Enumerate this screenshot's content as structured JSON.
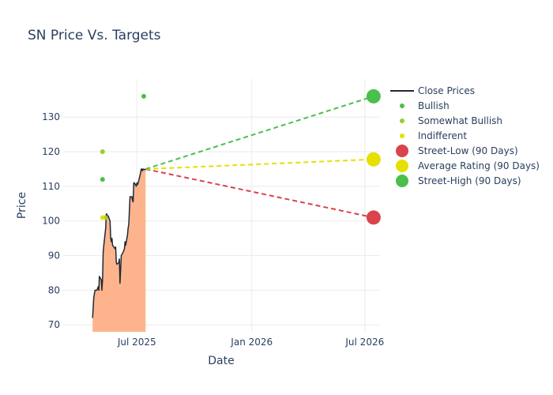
{
  "chart_data": {
    "type": "line",
    "title": "SN Price Vs. Targets",
    "xlabel": "Date",
    "ylabel": "Price",
    "x_range": [
      "2025-03-05",
      "2026-07-24"
    ],
    "ylim": [
      68,
      141
    ],
    "x_ticks": [
      {
        "date": "2025-07-01",
        "label": "Jul 2025"
      },
      {
        "date": "2026-01-01",
        "label": "Jan 2026"
      },
      {
        "date": "2026-07-01",
        "label": "Jul 2026"
      }
    ],
    "y_ticks": [
      70,
      80,
      90,
      100,
      110,
      120,
      130
    ],
    "grid": true,
    "legend_position": "right",
    "colors": {
      "close": "#1f2937",
      "fill": "#fdb48c",
      "bullish": "#4bbf4b",
      "somewhat_bullish": "#9acd32",
      "indifferent": "#e5e000",
      "street_low": "#d9434b",
      "average": "#e5e000",
      "street_high": "#4bbf4b",
      "grid": "#ebebeb",
      "text": "#2a3f5f"
    },
    "close_prices": {
      "name": "Close Prices",
      "dates": [
        "2025-04-21",
        "2025-04-23",
        "2025-04-25",
        "2025-04-28",
        "2025-04-30",
        "2025-05-01",
        "2025-05-02",
        "2025-05-05",
        "2025-05-06",
        "2025-05-07",
        "2025-05-08",
        "2025-05-09",
        "2025-05-12",
        "2025-05-13",
        "2025-05-14",
        "2025-05-15",
        "2025-05-16",
        "2025-05-19",
        "2025-05-20",
        "2025-05-21",
        "2025-05-22",
        "2025-05-23",
        "2025-05-27",
        "2025-05-28",
        "2025-05-29",
        "2025-05-30",
        "2025-06-02",
        "2025-06-03",
        "2025-06-04",
        "2025-06-05",
        "2025-06-06",
        "2025-06-09",
        "2025-06-10",
        "2025-06-11",
        "2025-06-12",
        "2025-06-13",
        "2025-06-16",
        "2025-06-17",
        "2025-06-18",
        "2025-06-20",
        "2025-06-23",
        "2025-06-24",
        "2025-06-25",
        "2025-06-26",
        "2025-06-27",
        "2025-06-30",
        "2025-07-01",
        "2025-07-02",
        "2025-07-03",
        "2025-07-07",
        "2025-07-08",
        "2025-07-09",
        "2025-07-10",
        "2025-07-11",
        "2025-07-14",
        "2025-07-15"
      ],
      "values": [
        72,
        78,
        80,
        80,
        81,
        80,
        84,
        83,
        80,
        83,
        91,
        93,
        98,
        102,
        102,
        101,
        101.5,
        100,
        95,
        94,
        95,
        93,
        92,
        92.5,
        88,
        87.5,
        88,
        89,
        82,
        86,
        90,
        91,
        91.5,
        92,
        94,
        93,
        96,
        98,
        99,
        107,
        107,
        106,
        105.5,
        111,
        111,
        110,
        111,
        110.5,
        111,
        114,
        115,
        115,
        114.5,
        115,
        114.8,
        115
      ]
    },
    "analyst_ratings": [
      {
        "name": "Bullish",
        "points": [
          {
            "date": "2025-05-07",
            "value": 112
          },
          {
            "date": "2025-07-12",
            "value": 136
          }
        ]
      },
      {
        "name": "Somewhat Bullish",
        "points": [
          {
            "date": "2025-05-07",
            "value": 120
          },
          {
            "date": "2025-05-12",
            "value": 101
          }
        ]
      },
      {
        "name": "Indifferent",
        "points": [
          {
            "date": "2025-05-07",
            "value": 101
          }
        ]
      }
    ],
    "targets": [
      {
        "name": "Street-Low (90 Days)",
        "date": "2026-07-15",
        "value": 101
      },
      {
        "name": "Average Rating (90 Days)",
        "date": "2026-07-15",
        "value": 117.8
      },
      {
        "name": "Street-High (90 Days)",
        "date": "2026-07-15",
        "value": 136
      }
    ],
    "projection_start": {
      "date": "2025-07-15",
      "value": 115
    },
    "legend": [
      "Close Prices",
      "Bullish",
      "Somewhat Bullish",
      "Indifferent",
      "Street-Low (90 Days)",
      "Average Rating (90 Days)",
      "Street-High (90 Days)"
    ]
  }
}
